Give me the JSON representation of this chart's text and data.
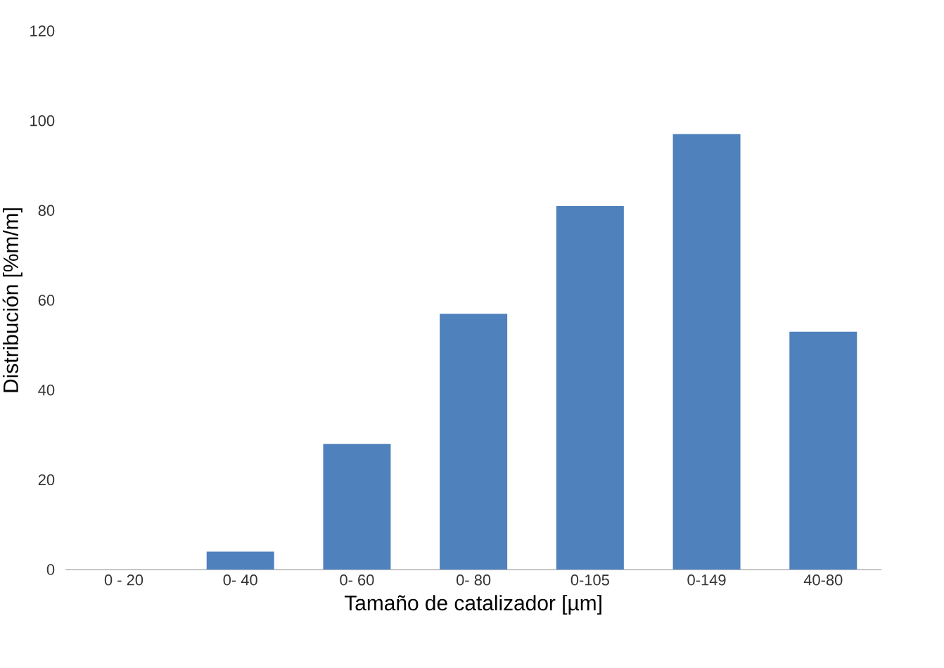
{
  "chart_data": {
    "type": "bar",
    "xlabel": "Tamaño de catalizador [µm]",
    "ylabel": "Distribución [%m/m]",
    "categories": [
      "0 - 20",
      "0- 40",
      "0- 60",
      "0- 80",
      "0-105",
      "0-149",
      "40-80"
    ],
    "values": [
      0,
      4,
      28,
      57,
      81,
      97,
      53
    ],
    "color": "#4f81bd",
    "ylim": [
      0,
      120
    ],
    "yticks": [
      0,
      20,
      40,
      60,
      80,
      100,
      120
    ]
  }
}
